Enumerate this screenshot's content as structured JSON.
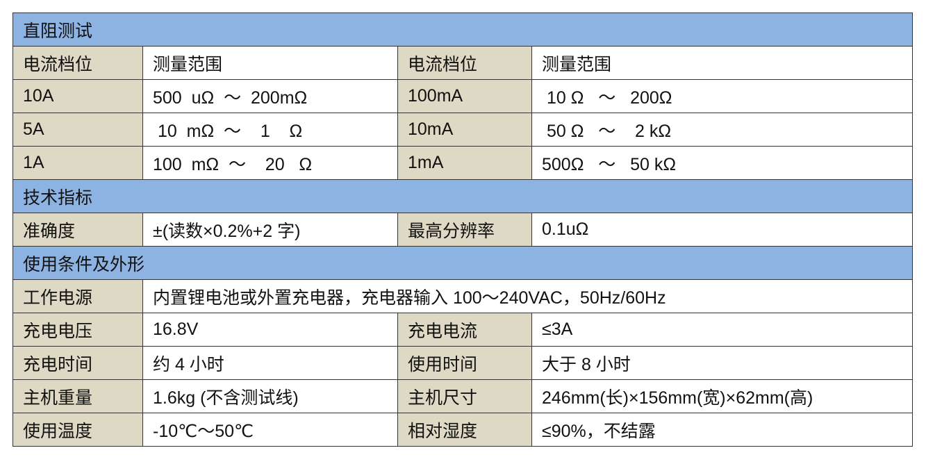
{
  "sections": [
    {
      "title": "直阻测试"
    },
    {
      "title": "技术指标"
    },
    {
      "title": "使用条件及外形"
    }
  ],
  "dc_resistance": {
    "header": [
      "电流档位",
      "测量范围",
      "电流档位",
      "测量范围"
    ],
    "rows": [
      [
        "10A",
        "500  uΩ  ～  200mΩ",
        "100mA",
        " 10 Ω   ～   200Ω"
      ],
      [
        "5A",
        " 10  mΩ  ～    1    Ω",
        "10mA",
        " 50 Ω   ～    2 kΩ"
      ],
      [
        "1A",
        "100  mΩ  ～    20   Ω",
        "1mA",
        "500Ω   ～   50 kΩ"
      ]
    ]
  },
  "specs": {
    "rows": [
      [
        "准确度",
        "±(读数×0.2%+2 字)",
        "最高分辨率",
        "0.1uΩ"
      ]
    ]
  },
  "conditions": {
    "power": [
      "工作电源",
      "内置锂电池或外置充电器，充电器输入 100～240VAC，50Hz/60Hz"
    ],
    "rows": [
      [
        "充电电压",
        "16.8V",
        "充电电流",
        "≤3A"
      ],
      [
        "充电时间",
        "约 4 小时",
        "使用时间",
        "大于 8 小时"
      ],
      [
        "主机重量",
        "1.6kg (不含测试线)",
        "主机尺寸",
        "246mm(长)×156mm(宽)×62mm(高)"
      ],
      [
        "使用温度",
        "-10℃～50℃",
        "相对湿度",
        "≤90%，不结露"
      ]
    ]
  },
  "colors": {
    "section_header": "#8db3e2",
    "label_cell": "#ddd9c4",
    "value_cell": "#ffffff"
  }
}
